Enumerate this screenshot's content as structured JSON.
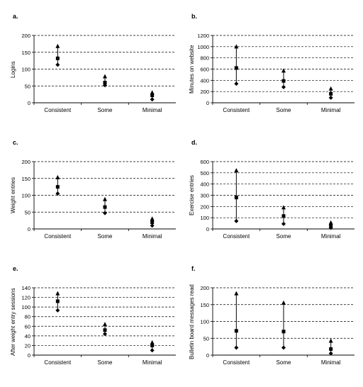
{
  "chart_data": [
    {
      "panel_label": "a.",
      "type": "scatter",
      "ylabel": "Logins",
      "ylim": [
        0,
        200
      ],
      "yticks": [
        0,
        50,
        100,
        150,
        200
      ],
      "categories": [
        "Consistent",
        "Some",
        "Minimal"
      ],
      "series": [
        {
          "name": "",
          "marker": "triangle",
          "values": [
            168,
            78,
            30
          ]
        },
        {
          "name": "",
          "marker": "square",
          "values": [
            132,
            60,
            22
          ]
        },
        {
          "name": "",
          "marker": "diamond",
          "values": [
            113,
            52,
            10
          ]
        }
      ],
      "grid": "dashed-horizontal"
    },
    {
      "panel_label": "b.",
      "type": "scatter",
      "ylabel": "Minutes on website",
      "ylim": [
        0,
        1200
      ],
      "yticks": [
        0,
        200,
        400,
        600,
        800,
        1000,
        1200
      ],
      "categories": [
        "Consistent",
        "Some",
        "Minimal"
      ],
      "series": [
        {
          "name": "",
          "marker": "triangle",
          "values": [
            1000,
            570,
            250
          ]
        },
        {
          "name": "",
          "marker": "square",
          "values": [
            620,
            390,
            160
          ]
        },
        {
          "name": "",
          "marker": "diamond",
          "values": [
            340,
            280,
            90
          ]
        }
      ],
      "grid": "dashed-horizontal"
    },
    {
      "panel_label": "c.",
      "type": "scatter",
      "ylabel": "Weight entries",
      "ylim": [
        0,
        200
      ],
      "yticks": [
        0,
        50,
        100,
        150,
        200
      ],
      "categories": [
        "Consistent",
        "Some",
        "Minimal"
      ],
      "series": [
        {
          "name": "",
          "marker": "triangle",
          "values": [
            153,
            88,
            30
          ]
        },
        {
          "name": "",
          "marker": "square",
          "values": [
            125,
            65,
            20
          ]
        },
        {
          "name": "",
          "marker": "diamond",
          "values": [
            105,
            47,
            10
          ]
        }
      ],
      "grid": "dashed-horizontal"
    },
    {
      "panel_label": "d.",
      "type": "scatter",
      "ylabel": "Exercise entries",
      "ylim": [
        0,
        600
      ],
      "yticks": [
        0,
        100,
        200,
        300,
        400,
        500,
        600
      ],
      "categories": [
        "Consistent",
        "Some",
        "Minimal"
      ],
      "series": [
        {
          "name": "",
          "marker": "triangle",
          "values": [
            520,
            190,
            55
          ]
        },
        {
          "name": "",
          "marker": "square",
          "values": [
            280,
            115,
            30
          ]
        },
        {
          "name": "",
          "marker": "diamond",
          "values": [
            70,
            45,
            10
          ]
        }
      ],
      "grid": "dashed-horizontal"
    },
    {
      "panel_label": "e.",
      "type": "scatter",
      "ylabel": "After weight entry sessions",
      "ylim": [
        0,
        140
      ],
      "yticks": [
        0,
        20,
        40,
        60,
        80,
        100,
        120,
        140
      ],
      "categories": [
        "Consistent",
        "Some",
        "Minimal"
      ],
      "series": [
        {
          "name": "",
          "marker": "triangle",
          "values": [
            128,
            64,
            26
          ]
        },
        {
          "name": "",
          "marker": "square",
          "values": [
            112,
            52,
            20
          ]
        },
        {
          "name": "",
          "marker": "diamond",
          "values": [
            93,
            44,
            10
          ]
        }
      ],
      "grid": "dashed-horizontal"
    },
    {
      "panel_label": "f.",
      "type": "scatter",
      "ylabel": "Bulletin board messages read",
      "ylim": [
        0,
        200
      ],
      "yticks": [
        0,
        50,
        100,
        150,
        200
      ],
      "categories": [
        "Consistent",
        "Some",
        "Minimal"
      ],
      "series": [
        {
          "name": "",
          "marker": "triangle",
          "values": [
            183,
            155,
            42
          ]
        },
        {
          "name": "",
          "marker": "square",
          "values": [
            72,
            70,
            18
          ]
        },
        {
          "name": "",
          "marker": "diamond",
          "values": [
            22,
            22,
            5
          ]
        }
      ],
      "grid": "dashed-horizontal"
    }
  ]
}
